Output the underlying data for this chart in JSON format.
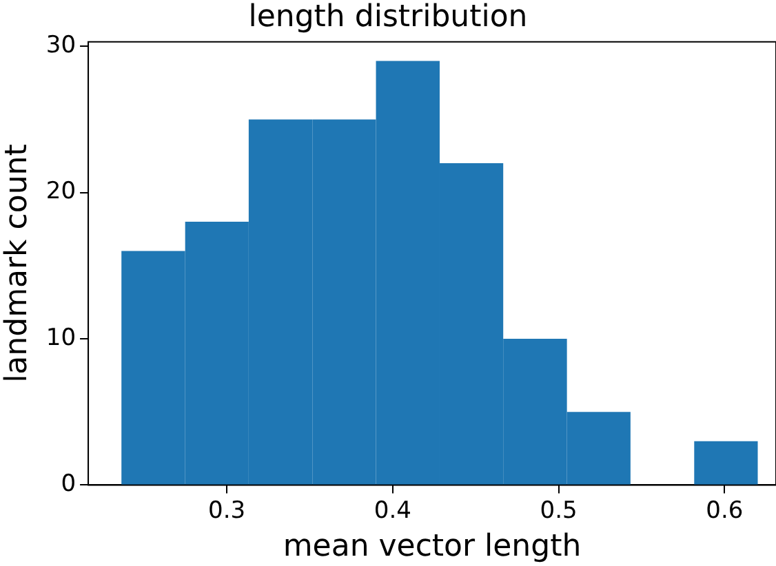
{
  "chart_data": {
    "type": "histogram",
    "title": "length distribution",
    "xlabel": "mean vector length",
    "ylabel": "landmark count",
    "bins": [
      0.2365,
      0.2749,
      0.3132,
      0.3516,
      0.3899,
      0.4283,
      0.4666,
      0.505,
      0.5433,
      0.5817,
      0.62
    ],
    "values": [
      16,
      18,
      25,
      25,
      29,
      22,
      10,
      5,
      0,
      3
    ],
    "color": "#1f77b4",
    "xlim": [
      0.2165,
      0.631
    ],
    "ylim": [
      0,
      30.3
    ],
    "xticks": [
      0.3,
      0.4,
      0.5,
      0.6
    ],
    "yticks": [
      0,
      10,
      20,
      30
    ],
    "grid": false,
    "legend": false
  }
}
